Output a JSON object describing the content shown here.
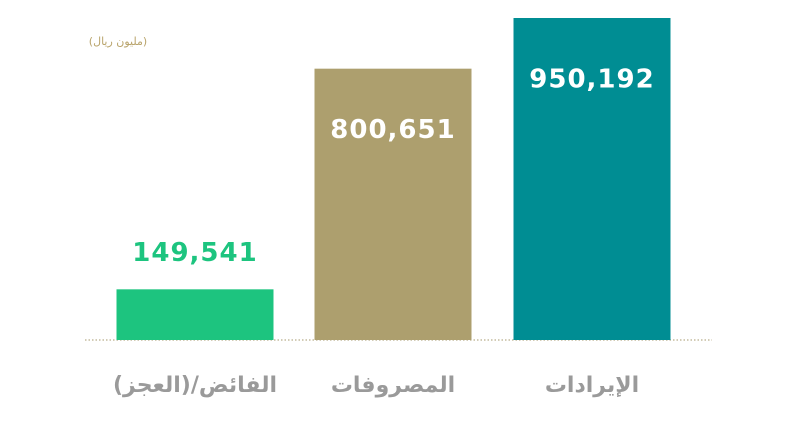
{
  "chart_data": {
    "type": "bar",
    "unit_label": "(مليون ريال)",
    "categories": [
      "الفائض/(العجز)",
      "المصروفات",
      "الإيرادات"
    ],
    "values": [
      149541,
      800651,
      950192
    ],
    "value_labels": [
      "149,541",
      "800,651",
      "950,192"
    ],
    "colors": [
      "#1dc47f",
      "#ad9f6e",
      "#008d93"
    ]
  }
}
